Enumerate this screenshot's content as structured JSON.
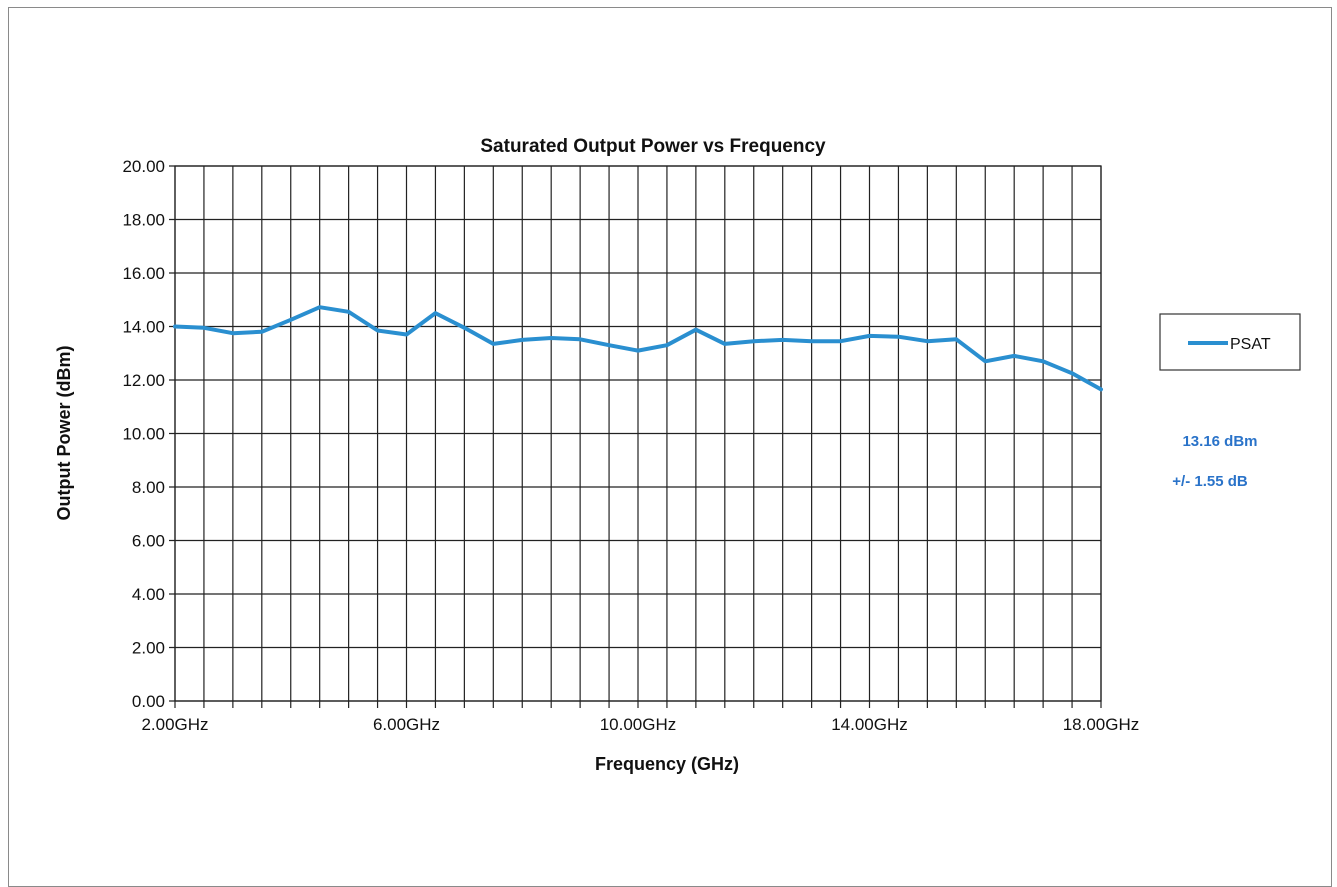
{
  "chart_data": {
    "type": "line",
    "title": "Saturated Output Power vs Frequency",
    "xlabel": "Frequency (GHz)",
    "ylabel": "Output Power (dBm)",
    "x_tick_labels": [
      "2.00GHz",
      "6.00GHz",
      "10.00GHz",
      "14.00GHz",
      "18.00GHz"
    ],
    "x_tick_values": [
      2,
      6,
      10,
      14,
      18
    ],
    "y_tick_labels": [
      "0.00",
      "2.00",
      "4.00",
      "6.00",
      "8.00",
      "10.00",
      "12.00",
      "14.00",
      "16.00",
      "18.00",
      "20.00"
    ],
    "xlim": [
      2,
      18
    ],
    "ylim": [
      0,
      20
    ],
    "grid": true,
    "legend_position": "right",
    "series": [
      {
        "name": "PSAT",
        "color": "#2a8fd0",
        "x": [
          2.0,
          2.5,
          3.0,
          3.5,
          4.0,
          4.5,
          5.0,
          5.5,
          6.0,
          6.5,
          7.0,
          7.5,
          8.0,
          8.5,
          9.0,
          9.5,
          10.0,
          10.5,
          11.0,
          11.5,
          12.0,
          12.5,
          13.0,
          13.5,
          14.0,
          14.5,
          15.0,
          15.5,
          16.0,
          16.5,
          17.0,
          17.5,
          18.0
        ],
        "y": [
          14.0,
          13.95,
          13.75,
          13.8,
          14.25,
          14.72,
          14.55,
          13.85,
          13.7,
          14.5,
          13.95,
          13.35,
          13.5,
          13.57,
          13.52,
          13.3,
          13.1,
          13.3,
          13.88,
          13.35,
          13.45,
          13.5,
          13.45,
          13.45,
          13.65,
          13.62,
          13.45,
          13.52,
          12.7,
          12.9,
          12.7,
          12.25,
          11.65
        ]
      }
    ],
    "annotations": [
      "13.16 dBm",
      "+/- 1.55 dB"
    ]
  }
}
